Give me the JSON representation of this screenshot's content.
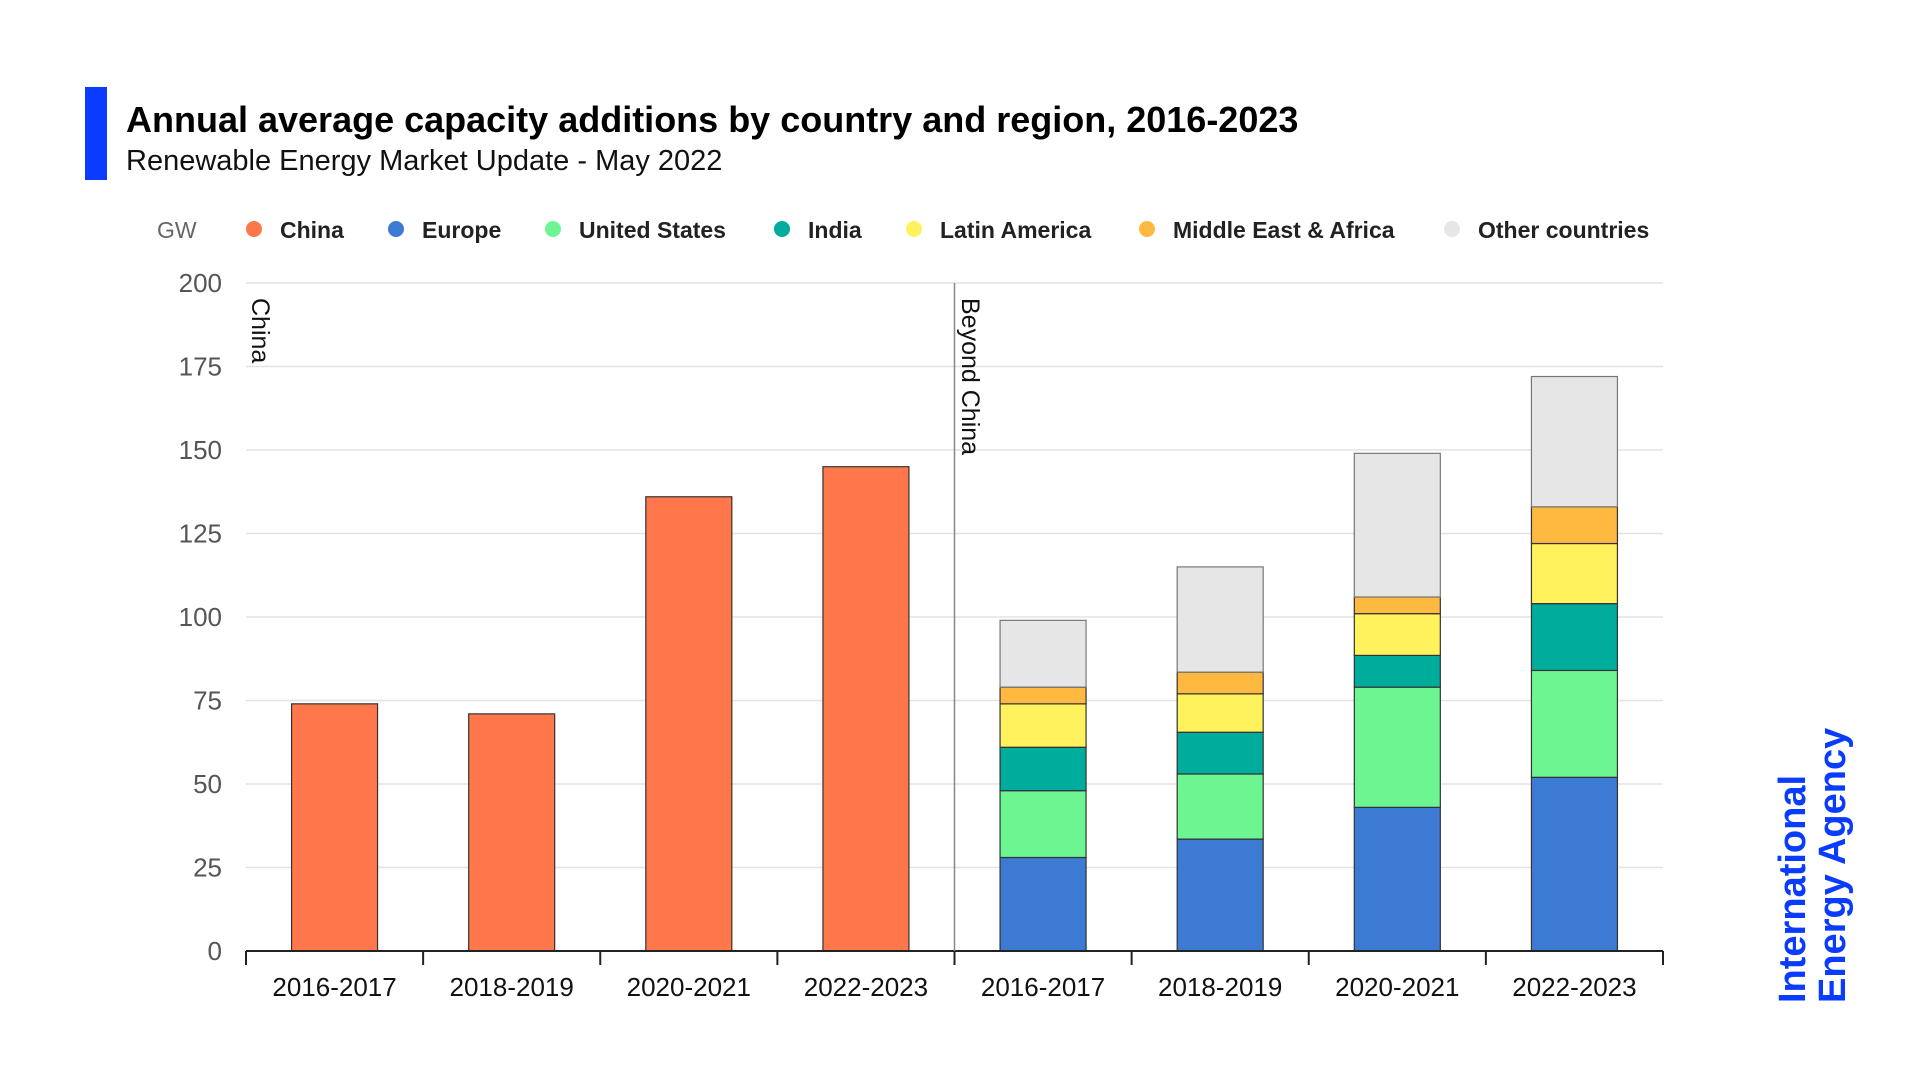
{
  "chart_data": {
    "type": "bar",
    "title": "Annual average capacity additions by country and region, 2016-2023",
    "subtitle": "Renewable Energy Market Update - May 2022",
    "ylabel": "GW",
    "ylim": [
      0,
      200
    ],
    "yticks": [
      0,
      25,
      50,
      75,
      100,
      125,
      150,
      175,
      200
    ],
    "grid": true,
    "legend_position": "top",
    "annotations": [
      "China",
      "Beyond China"
    ],
    "groups": [
      {
        "name": "China",
        "categories": [
          "2016-2017",
          "2018-2019",
          "2020-2021",
          "2022-2023"
        ]
      },
      {
        "name": "Beyond China",
        "categories": [
          "2016-2017",
          "2018-2019",
          "2020-2021",
          "2022-2023"
        ]
      }
    ],
    "series": [
      {
        "name": "China",
        "color": "#FF774A",
        "group": "China",
        "values": [
          74,
          71,
          136,
          145
        ]
      },
      {
        "name": "Europe",
        "color": "#3D7AD4",
        "group": "Beyond China",
        "values": [
          28,
          33.5,
          43,
          52
        ]
      },
      {
        "name": "United States",
        "color": "#6CF591",
        "group": "Beyond China",
        "values": [
          20,
          19.5,
          36,
          32
        ]
      },
      {
        "name": "India",
        "color": "#00AC9C",
        "group": "Beyond China",
        "values": [
          13,
          12.5,
          9.5,
          20
        ]
      },
      {
        "name": "Latin America",
        "color": "#FFF25C",
        "group": "Beyond China",
        "values": [
          13,
          11.5,
          12.5,
          18
        ]
      },
      {
        "name": "Middle East & Africa",
        "color": "#FFB840",
        "group": "Beyond China",
        "values": [
          5,
          6.5,
          5,
          11
        ]
      },
      {
        "name": "Other countries",
        "color": "#E6E6E6",
        "group": "Beyond China",
        "values": [
          20,
          31.5,
          43,
          39
        ]
      }
    ]
  },
  "branding": {
    "logo_line1": "International",
    "logo_line2": "Energy Agency",
    "accent": "#0A3CFF"
  }
}
